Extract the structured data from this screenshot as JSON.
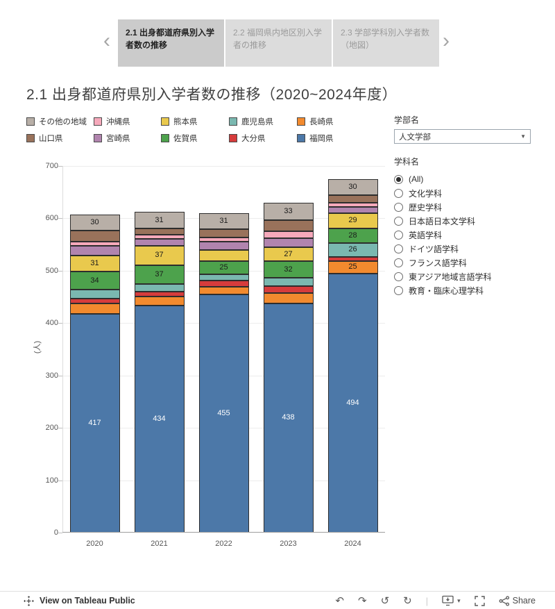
{
  "nav": {
    "prev_icon": "‹",
    "next_icon": "›",
    "tabs": [
      {
        "label": "2.1 出身都道府県別入学者数の推移",
        "active": true
      },
      {
        "label": "2.2 福岡県内地区別入学者の推移",
        "active": false
      },
      {
        "label": "2.3 学部学科別入学者数（地図）",
        "active": false
      }
    ]
  },
  "title": "2.1 出身都道府県別入学者数の推移（2020~2024年度）",
  "legend": {
    "items": [
      {
        "label": "その他の地域",
        "color": "#b8afa7"
      },
      {
        "label": "沖縄県",
        "color": "#f6a9bb"
      },
      {
        "label": "熊本県",
        "color": "#e9c94d"
      },
      {
        "label": "鹿児島県",
        "color": "#7ab8b0"
      },
      {
        "label": "長崎県",
        "color": "#f28a2e"
      },
      {
        "label": "山口県",
        "color": "#99725b"
      },
      {
        "label": "宮崎県",
        "color": "#b184ae"
      },
      {
        "label": "佐賀県",
        "color": "#4da24c"
      },
      {
        "label": "大分県",
        "color": "#d63c3c"
      },
      {
        "label": "福岡県",
        "color": "#4c78a8"
      }
    ]
  },
  "filters": {
    "faculty_label": "学部名",
    "faculty_value": "人文学部",
    "caret_icon": "▼",
    "department_label": "学科名",
    "department_selected": "(All)",
    "department_options": [
      "(All)",
      "文化学科",
      "歴史学科",
      "日本語日本文学科",
      "英語学科",
      "ドイツ語学科",
      "フランス語学科",
      "東アジア地域言語学科",
      "教育・臨床心理学科"
    ]
  },
  "chart_data": {
    "type": "bar",
    "stacked": true,
    "title": "2.1 出身都道府県別入学者数の推移（2020~2024年度）",
    "categories": [
      "2020",
      "2021",
      "2022",
      "2023",
      "2024"
    ],
    "ylabel": "(人)",
    "ylim": [
      0,
      700
    ],
    "yticks": [
      0,
      100,
      200,
      300,
      400,
      500,
      600,
      700
    ],
    "label_min": 25,
    "grid": true,
    "legend_position": "top",
    "series": [
      {
        "name": "福岡県",
        "color": "#4c78a8",
        "label_color": "#ffffff",
        "values": [
          417,
          434,
          455,
          438,
          494
        ]
      },
      {
        "name": "長崎県",
        "color": "#f28a2e",
        "label_color": "#1a1a1a",
        "values": [
          20,
          17,
          14,
          19,
          25
        ]
      },
      {
        "name": "大分県",
        "color": "#d63c3c",
        "label_color": "#1a1a1a",
        "values": [
          10,
          9,
          12,
          14,
          8
        ]
      },
      {
        "name": "鹿児島県",
        "color": "#7ab8b0",
        "label_color": "#1a1a1a",
        "values": [
          17,
          14,
          12,
          15,
          26
        ]
      },
      {
        "name": "佐賀県",
        "color": "#4da24c",
        "label_color": "#1a1a1a",
        "values": [
          34,
          37,
          25,
          32,
          28
        ]
      },
      {
        "name": "熊本県",
        "color": "#e9c94d",
        "label_color": "#1a1a1a",
        "values": [
          31,
          37,
          22,
          27,
          29
        ]
      },
      {
        "name": "宮崎県",
        "color": "#b184ae",
        "label_color": "#1a1a1a",
        "values": [
          18,
          13,
          15,
          17,
          12
        ]
      },
      {
        "name": "沖縄県",
        "color": "#f6a9bb",
        "label_color": "#1a1a1a",
        "values": [
          8,
          8,
          9,
          14,
          8
        ]
      },
      {
        "name": "山口県",
        "color": "#99725b",
        "label_color": "#1a1a1a",
        "values": [
          22,
          12,
          15,
          21,
          15
        ]
      },
      {
        "name": "その他の地域",
        "color": "#b8afa7",
        "label_color": "#1a1a1a",
        "values": [
          30,
          31,
          31,
          33,
          30
        ]
      }
    ]
  },
  "footer": {
    "view_text": "View on Tableau Public",
    "undo_icon": "↶",
    "redo_icon": "↷",
    "reset_icon": "↺",
    "refresh_icon": "↻",
    "caret_icon": "▾",
    "separator": "|",
    "share_label": "Share"
  }
}
